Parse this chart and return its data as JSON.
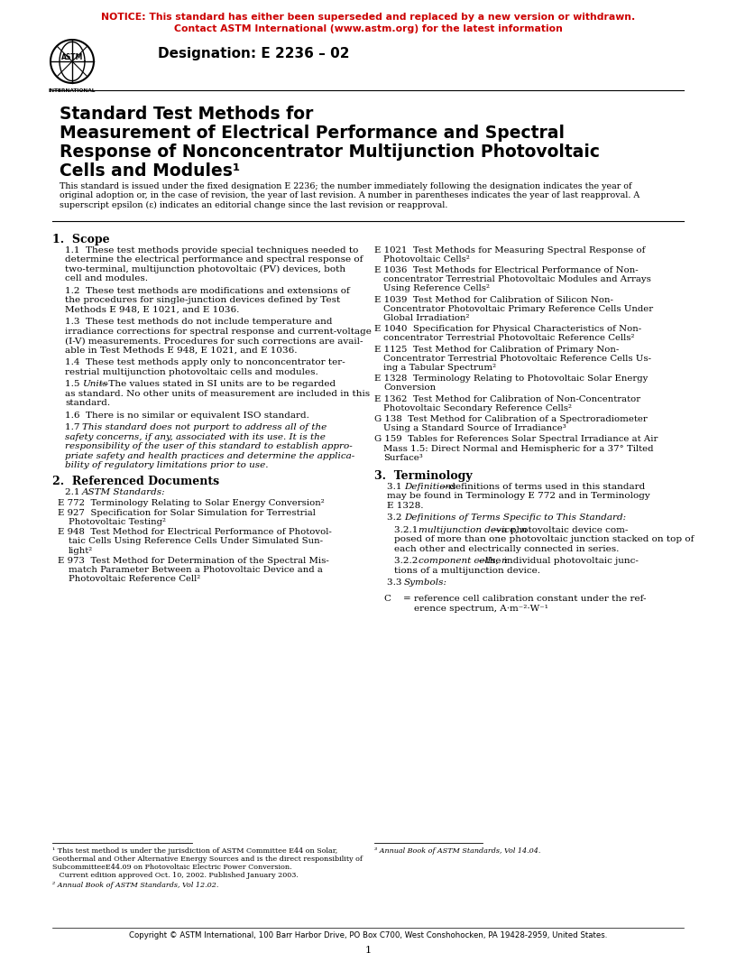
{
  "notice_line1": "NOTICE: This standard has either been superseded and replaced by a new version or withdrawn.",
  "notice_line2": "Contact ASTM International (www.astm.org) for the latest information",
  "notice_color": "#CC0000",
  "designation": "Designation: E 2236 – 02",
  "title_line1": "Standard Test Methods for",
  "title_line2": "Measurement of Electrical Performance and Spectral",
  "title_line3": "Response of Nonconcentrator Multijunction Photovoltaic",
  "title_line4": "Cells and Modules¹",
  "subtitle_lines": [
    "This standard is issued under the fixed designation E 2236; the number immediately following the designation indicates the year of",
    "original adoption or, in the case of revision, the year of last revision. A number in parentheses indicates the year of last reapproval. A",
    "superscript epsilon (ε) indicates an editorial change since the last revision or reapproval."
  ],
  "section1_head": "1.  Scope",
  "s1p1_lines": [
    "1.1  These test methods provide special techniques needed to",
    "determine the electrical performance and spectral response of",
    "two-terminal, multijunction photovoltaic (PV) devices, both",
    "cell and modules."
  ],
  "s1p2_lines": [
    "1.2  These test methods are modifications and extensions of",
    "the procedures for single-junction devices defined by Test",
    "Methods E 948, E 1021, and E 1036."
  ],
  "s1p3_lines": [
    "1.3  These test methods do not include temperature and",
    "irradiance corrections for spectral response and current-voltage",
    "(I-V) measurements. Procedures for such corrections are avail-",
    "able in Test Methods E 948, E 1021, and E 1036."
  ],
  "s1p4_lines": [
    "1.4  These test methods apply only to nonconcentrator ter-",
    "restrial multijunction photovoltaic cells and modules."
  ],
  "s1p5_prefix": "1.5  ",
  "s1p5_italic": "Units",
  "s1p5_rest_lines": [
    "—The values stated in SI units are to be regarded",
    "as standard. No other units of measurement are included in this",
    "standard."
  ],
  "s1p6": "1.6  There is no similar or equivalent ISO standard.",
  "s1p7_prefix": "1.7  ",
  "s1p7_italic_lines": [
    "This standard does not purport to address all of the",
    "safety concerns, if any, associated with its use. It is the",
    "responsibility of the user of this standard to establish appro-",
    "priate safety and health practices and determine the applica-",
    "bility of regulatory limitations prior to use."
  ],
  "section2_head": "2.  Referenced Documents",
  "s2p1_prefix": "2.1  ",
  "s2p1_italic": "ASTM Standards:",
  "s2_refs_left": [
    [
      "E 772  Terminology Relating to Solar Energy Conversion²"
    ],
    [
      "E 927  Specification for Solar Simulation for Terrestrial",
      "Photovoltaic Testing²"
    ],
    [
      "E 948  Test Method for Electrical Performance of Photovol-",
      "taic Cells Using Reference Cells Under Simulated Sun-",
      "light²"
    ],
    [
      "E 973  Test Method for Determination of the Spectral Mis-",
      "match Parameter Between a Photovoltaic Device and a",
      "Photovoltaic Reference Cell²"
    ]
  ],
  "s2_refs_right": [
    [
      "E 1021  Test Methods for Measuring Spectral Response of",
      "Photovoltaic Cells²"
    ],
    [
      "E 1036  Test Methods for Electrical Performance of Non-",
      "concentrator Terrestrial Photovoltaic Modules and Arrays",
      "Using Reference Cells²"
    ],
    [
      "E 1039  Test Method for Calibration of Silicon Non-",
      "Concentrator Photovoltaic Primary Reference Cells Under",
      "Global Irradiation²"
    ],
    [
      "E 1040  Specification for Physical Characteristics of Non-",
      "concentrator Terrestrial Photovoltaic Reference Cells²"
    ],
    [
      "E 1125  Test Method for Calibration of Primary Non-",
      "Concentrator Terrestrial Photovoltaic Reference Cells Us-",
      "ing a Tabular Spectrum²"
    ],
    [
      "E 1328  Terminology Relating to Photovoltaic Solar Energy",
      "Conversion"
    ],
    [
      "E 1362  Test Method for Calibration of Non-Concentrator",
      "Photovoltaic Secondary Reference Cells²"
    ],
    [
      "G 138  Test Method for Calibration of a Spectroradiometer",
      "Using a Standard Source of Irradiance³"
    ],
    [
      "G 159  Tables for References Solar Spectral Irradiance at Air",
      "Mass 1.5: Direct Normal and Hemispheric for a 37° Tilted",
      "Surface³"
    ]
  ],
  "section3_head": "3.  Terminology",
  "s3p1_prefix": "3.1  ",
  "s3p1_italic": "Definitions",
  "s3p1_rest_lines": [
    "—definitions of terms used in this standard",
    "may be found in Terminology E 772 and in Terminology",
    "E 1328."
  ],
  "s3p2_prefix": "3.2  ",
  "s3p2_italic": "Definitions of Terms Specific to This Standard:",
  "s3p21_prefix": "3.2.1  ",
  "s3p21_italic": "multijunction device, n",
  "s3p21_rest_lines": [
    "—a photovoltaic device com-",
    "posed of more than one photovoltaic junction stacked on top of",
    "each other and electrically connected in series."
  ],
  "s3p22_prefix": "3.2.2  ",
  "s3p22_italic": "component cells, n",
  "s3p22_rest_lines": [
    "—the individual photovoltaic junc-",
    "tions of a multijunction device."
  ],
  "s3p3_prefix": "3.3  ",
  "s3p3_italic": "Symbols:",
  "symbol_C": "C",
  "symbol_eq": "=",
  "symbol_C_def_lines": [
    "reference cell calibration constant under the ref-",
    "erence spectrum, A·m⁻²·W⁻¹"
  ],
  "footnote1_lines": [
    "¹ This test method is under the jurisdiction of ASTM Committee E44 on Solar,",
    "Geothermal and Other Alternative Energy Sources and is the direct responsibility of",
    "SubcommitteeE44.09 on Photovoltaic Electric Power Conversion.",
    "   Current edition approved Oct. 10, 2002. Published January 2003."
  ],
  "footnote2": "² Annual Book of ASTM Standards, Vol 12.02.",
  "footnote3": "³ Annual Book of ASTM Standards, Vol 14.04.",
  "footer": "Copyright © ASTM International, 100 Barr Harbor Drive, PO Box C700, West Conshohocken, PA 19428-2959, United States.",
  "page_num": "1",
  "bg_color": "#ffffff",
  "text_color": "#000000"
}
